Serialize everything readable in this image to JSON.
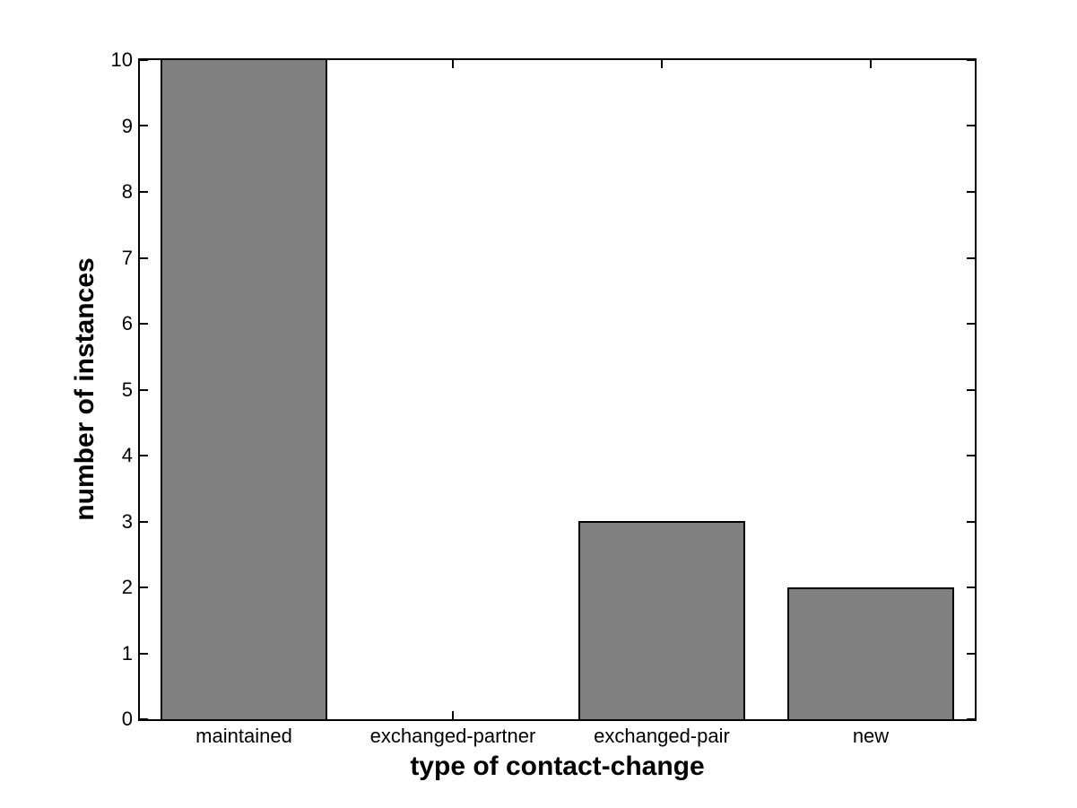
{
  "figure": {
    "background": "#ffffff"
  },
  "chart_data": {
    "type": "bar",
    "title": "",
    "categories": [
      "maintained",
      "exchanged-partner",
      "exchanged-pair",
      "new"
    ],
    "values": [
      10,
      0,
      3,
      2
    ],
    "xlabel": "type of contact-change",
    "ylabel": "number of instances",
    "ylim": [
      0,
      10
    ],
    "yticks": [
      0,
      1,
      2,
      3,
      4,
      5,
      6,
      7,
      8,
      9,
      10
    ],
    "bar_width_fraction": 0.8,
    "grid": false,
    "legend": null,
    "colors": {
      "bar_fill": "#808080",
      "bar_edge": "#000000",
      "axis": "#000000",
      "text": "#000000",
      "background": "#ffffff"
    }
  }
}
